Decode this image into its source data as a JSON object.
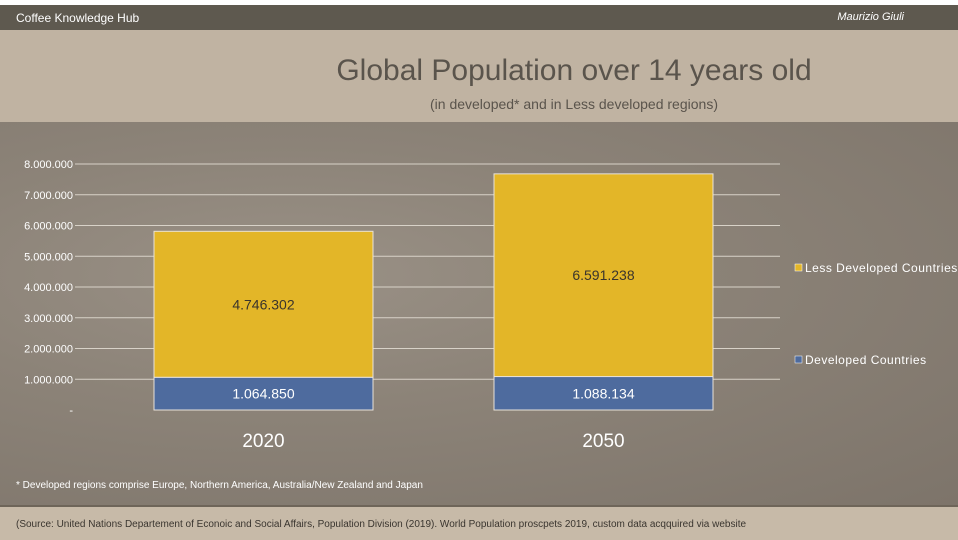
{
  "header": {
    "left": "Coffee Knowledge Hub",
    "right": "Maurizio Giuli"
  },
  "note": "* Developed regions comprise Europe, Northern America, Australia/New Zealand and Japan",
  "source": "(Source: United Nations Departement  of Econoic and Social Affairs, Population Division (2019). World Population proscpets 2019, custom data acqquired  via website",
  "colors": {
    "less": "#e3b628",
    "developed": "#4e6b9e"
  },
  "chart_data": {
    "type": "bar",
    "stacked": true,
    "title": "Global Population over 14 years old",
    "subtitle": "(in developed* and in Less developed regions)",
    "categories": [
      "2020",
      "2050"
    ],
    "series": [
      {
        "name": "Developed Countries",
        "values": [
          1064850,
          1088134
        ],
        "labels": [
          "1.064.850",
          "1.088.134"
        ]
      },
      {
        "name": "Less Developed Countries",
        "values": [
          4746302,
          6591238
        ],
        "labels": [
          "4.746.302",
          "6.591.238"
        ]
      }
    ],
    "ylim": [
      0,
      8000000
    ],
    "yticks": [
      "-",
      "1.000.000",
      "2.000.000",
      "3.000.000",
      "4.000.000",
      "5.000.000",
      "6.000.000",
      "7.000.000",
      "8.000.000"
    ],
    "grid": true,
    "legend_position": "right"
  }
}
